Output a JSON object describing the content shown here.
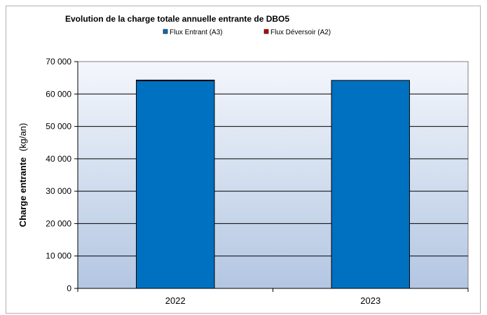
{
  "chart_data": {
    "type": "bar",
    "stacked": true,
    "title": "Evolution de la charge totale annuelle entrante de DBO5",
    "ylabel_bold": "Charge entrante",
    "ylabel_unit": "(kg/an)",
    "xlabel": "",
    "categories": [
      "2022",
      "2023"
    ],
    "series": [
      {
        "name": "Flux Entrant (A3)",
        "color": "#0070c0",
        "values": [
          64100,
          64200
        ]
      },
      {
        "name": "Flux Déversoir (A2)",
        "color": "#c00000",
        "values": [
          200,
          0
        ]
      }
    ],
    "ylim": [
      0,
      70000
    ],
    "yticks": [
      0,
      10000,
      20000,
      30000,
      40000,
      50000,
      60000,
      70000
    ],
    "ytick_labels": [
      "0",
      "10 000",
      "20 000",
      "30 000",
      "40 000",
      "50 000",
      "60 000",
      "70 000"
    ],
    "grid": true,
    "legend_position": "top-center"
  }
}
